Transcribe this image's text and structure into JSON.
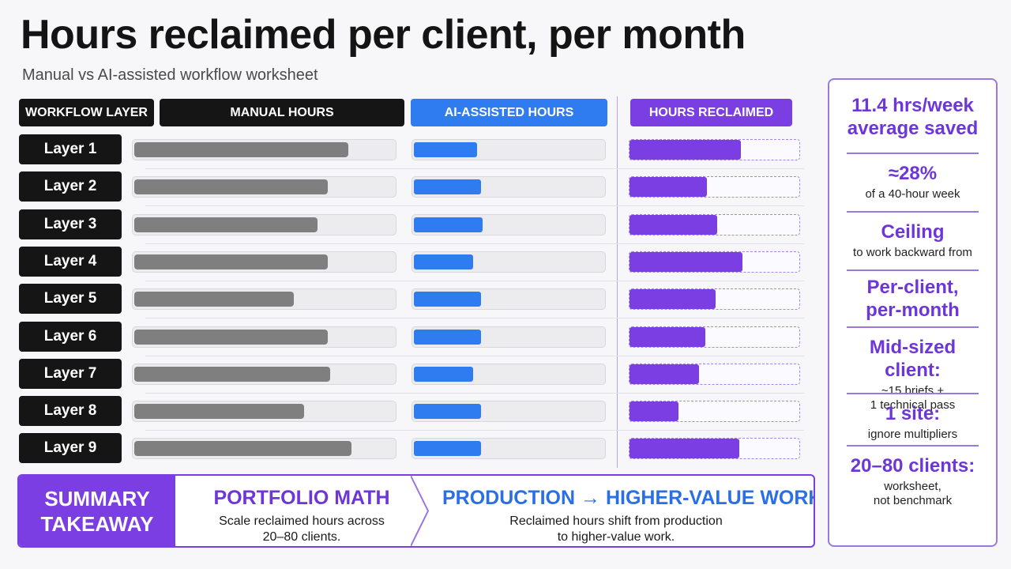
{
  "title": "Hours reclaimed per client, per month",
  "subtitle": "Manual vs AI-assisted workflow worksheet",
  "headers": {
    "layer": "WORKFLOW LAYER",
    "manual": "MANUAL HOURS",
    "ai": "AI-ASSISTED HOURS",
    "reclaimed": "HOURS RECLAIMED"
  },
  "colors": {
    "manual": "#7f7f7f",
    "ai": "#2f7cf0",
    "reclaimed": "#7a3ee2",
    "header_dark": "#151515"
  },
  "chart_data": {
    "type": "bar",
    "note_units": "relative bar fill (fraction of track)",
    "categories": [
      "Layer 1",
      "Layer 2",
      "Layer 3",
      "Layer 4",
      "Layer 5",
      "Layer 6",
      "Layer 7",
      "Layer 8",
      "Layer 9"
    ],
    "series": [
      {
        "name": "MANUAL HOURS",
        "values": [
          0.82,
          0.74,
          0.7,
          0.74,
          0.61,
          0.74,
          0.75,
          0.65,
          0.83
        ]
      },
      {
        "name": "AI-ASSISTED HOURS",
        "values": [
          0.33,
          0.35,
          0.36,
          0.31,
          0.35,
          0.35,
          0.31,
          0.35,
          0.35
        ]
      },
      {
        "name": "HOURS RECLAIMED",
        "values": [
          0.66,
          0.46,
          0.52,
          0.67,
          0.51,
          0.45,
          0.41,
          0.29,
          0.65
        ]
      }
    ],
    "ylim": [
      0,
      1
    ],
    "grid": false,
    "legend": "column headers"
  },
  "summary": {
    "label_line1": "SUMMARY",
    "label_line2": "TAKEAWAY",
    "portfolio": {
      "heading": "PORTFOLIO MATH",
      "line1": "Scale reclaimed hours across",
      "line2": "20–80 clients."
    },
    "production": {
      "heading": "PRODUCTION → HIGHER-VALUE WORK",
      "line1": "Reclaimed hours shift from production",
      "line2": "to higher-value work."
    }
  },
  "sidebar": {
    "stats": [
      {
        "big1": "11.4 hrs/week",
        "big2": "average saved",
        "small1": "",
        "small2": ""
      },
      {
        "big1": "≈28%",
        "big2": "",
        "small1": "of a 40-hour week",
        "small2": ""
      },
      {
        "big1": "Ceiling",
        "big2": "",
        "small1": "to work backward from",
        "small2": ""
      },
      {
        "big1": "Per-client,",
        "big2": "per-month",
        "small1": "",
        "small2": ""
      },
      {
        "big1": "Mid-sized client:",
        "big2": "",
        "small1": "~15 briefs +",
        "small2": "1 technical pass"
      },
      {
        "big1": "1 site:",
        "big2": "",
        "small1": "ignore multipliers",
        "small2": ""
      },
      {
        "big1": "20–80 clients:",
        "big2": "",
        "small1": "worksheet,",
        "small2": "not benchmark"
      }
    ]
  }
}
